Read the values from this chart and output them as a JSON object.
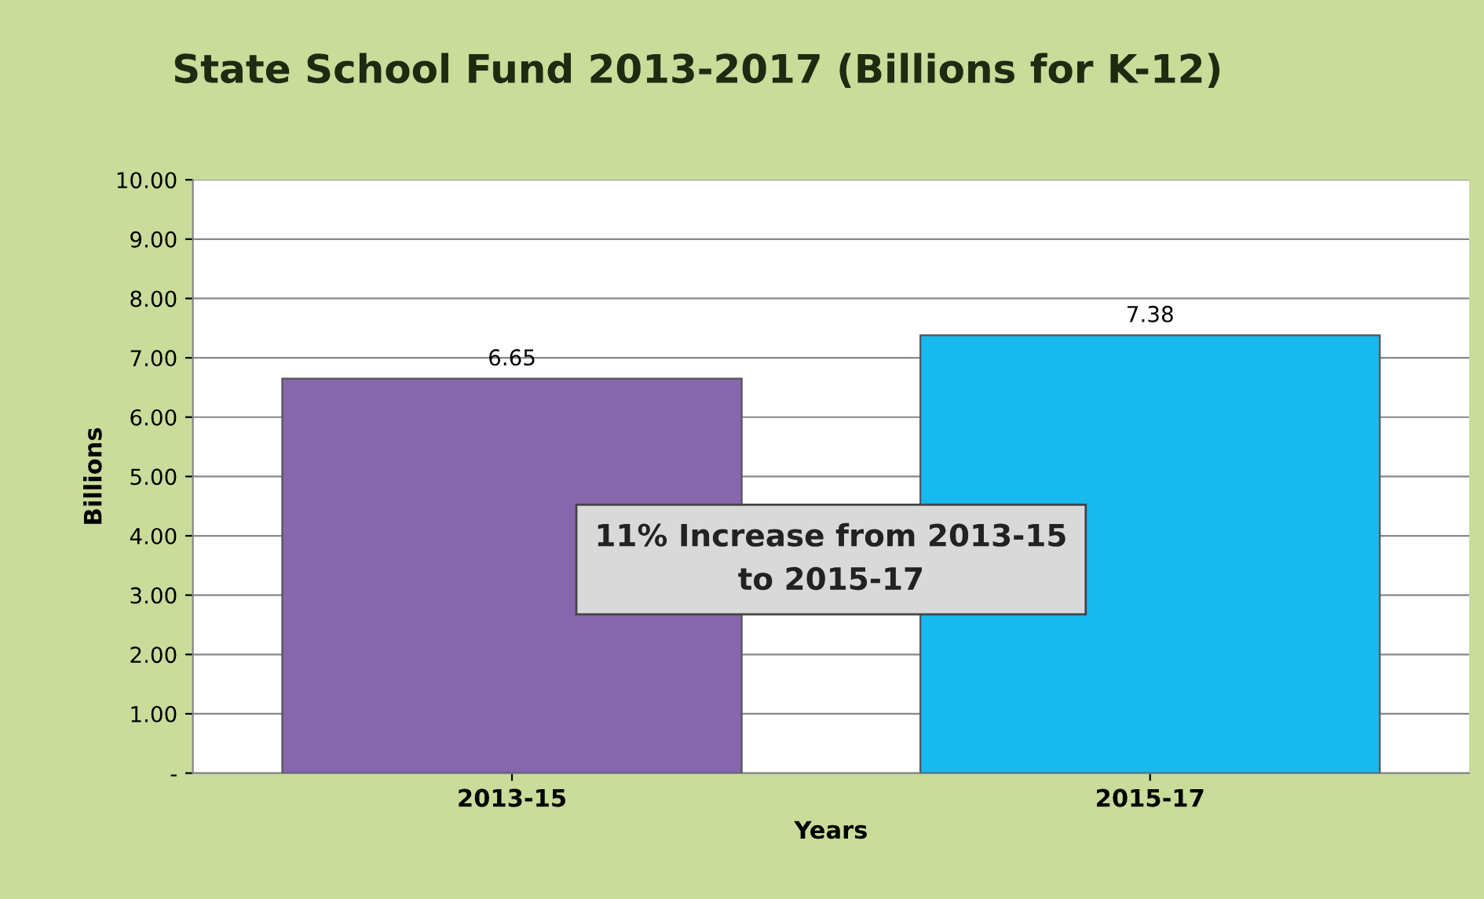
{
  "chart_data": {
    "type": "bar",
    "title": "State School Fund 2013-2017 (Billions for K-12)",
    "xlabel": "Years",
    "ylabel": "Billions",
    "categories": [
      "2013-15",
      "2015-17"
    ],
    "series": [
      {
        "values": [
          6.65,
          7.38
        ],
        "colors": [
          "#8666ac",
          "#17b9ee"
        ]
      }
    ],
    "ylim": [
      0,
      10
    ],
    "yticks": [
      {
        "value": 0,
        "label": "-"
      },
      {
        "value": 1,
        "label": "1.00"
      },
      {
        "value": 2,
        "label": "2.00"
      },
      {
        "value": 3,
        "label": "3.00"
      },
      {
        "value": 4,
        "label": "4.00"
      },
      {
        "value": 5,
        "label": "5.00"
      },
      {
        "value": 6,
        "label": "6.00"
      },
      {
        "value": 7,
        "label": "7.00"
      },
      {
        "value": 8,
        "label": "8.00"
      },
      {
        "value": 9,
        "label": "9.00"
      },
      {
        "value": 10,
        "label": "10.00"
      }
    ],
    "grid": "y",
    "data_labels": true,
    "annotations": [
      "11% Increase from 2013-15\nto 2015-17"
    ]
  }
}
